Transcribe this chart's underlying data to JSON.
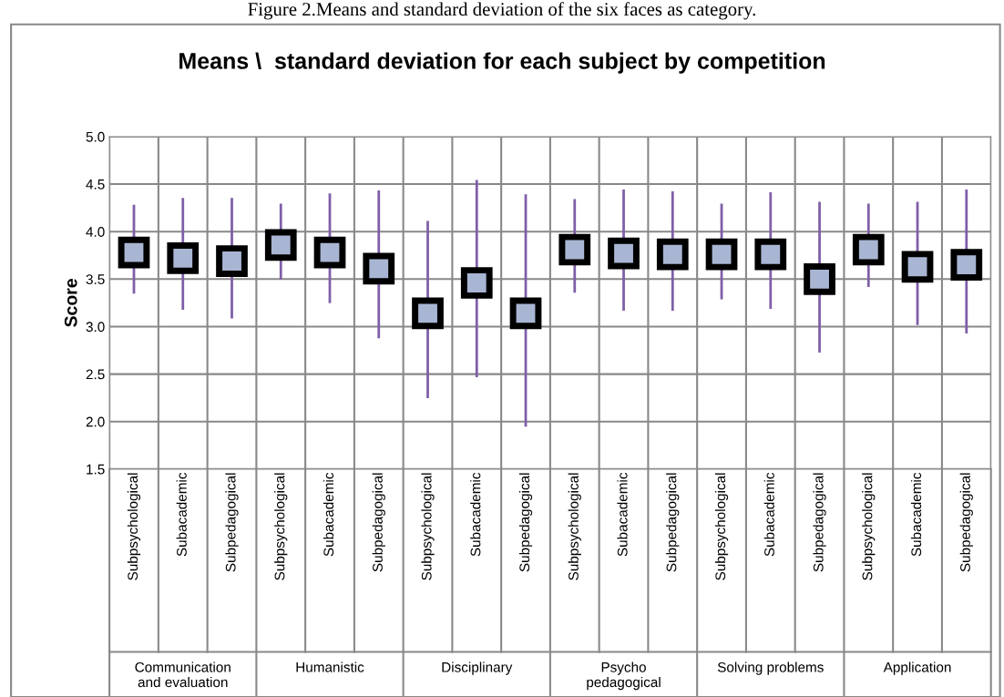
{
  "chart_data": {
    "type": "scatter",
    "title": "Means \\  standard deviation for each subject by competition",
    "ylabel": "Score",
    "categories": [
      "Subpsychological",
      "Subacademic",
      "Subpedagogical",
      "Subpsychological",
      "Subacademic",
      "Subpedagogical",
      "Subpsychological",
      "Subacademic",
      "Subpedagogical",
      "Subpsychological",
      "Subacademic",
      "Subpedagogical",
      "Subpsychological",
      "Subacademic",
      "Subpedagogical",
      "Subpsychological",
      "Subacademic",
      "Subpedagogical"
    ],
    "series": [
      {
        "color": "#000000",
        "values": [
          3.78,
          3.72,
          3.69,
          3.86,
          3.78,
          3.61,
          3.14,
          3.46,
          3.14,
          3.81,
          3.77,
          3.76,
          3.76,
          3.76,
          3.5,
          3.81,
          3.63,
          3.65
        ],
        "errors": [
          [
            3.36,
            4.27
          ],
          [
            3.19,
            4.34
          ],
          [
            3.1,
            4.34
          ],
          [
            3.51,
            4.28
          ],
          [
            3.26,
            4.39
          ],
          [
            2.89,
            4.42
          ],
          [
            2.26,
            4.1
          ],
          [
            2.48,
            4.53
          ],
          [
            1.96,
            4.38
          ],
          [
            3.37,
            4.33
          ],
          [
            3.18,
            4.43
          ],
          [
            3.18,
            4.41
          ],
          [
            3.3,
            4.28
          ],
          [
            3.2,
            4.4
          ],
          [
            2.74,
            4.3
          ],
          [
            3.43,
            4.28
          ],
          [
            3.03,
            4.3
          ],
          [
            2.94,
            4.43
          ]
        ]
      }
    ],
    "ylim": [
      1.5,
      5.0
    ],
    "yticks": [
      {
        "value": 1.5,
        "label": "1.5"
      },
      {
        "value": 2.0,
        "label": "2.0"
      },
      {
        "value": 2.5,
        "label": "2.5"
      },
      {
        "value": 3.0,
        "label": "3.0"
      },
      {
        "value": 3.5,
        "label": "3.5"
      },
      {
        "value": 4.0,
        "label": "4.0"
      },
      {
        "value": 4.5,
        "label": "4.5"
      },
      {
        "value": 5.0,
        "label": "5.0"
      }
    ],
    "grid": true,
    "marker": "square",
    "annotations": [
      "Figure 2.Means and standard deviation of the six faces as category.",
      "Communication\nand evaluation",
      "Humanistic",
      "Disciplinary",
      "Psycho\npedagogical",
      "Solving problems",
      "Application"
    ]
  }
}
